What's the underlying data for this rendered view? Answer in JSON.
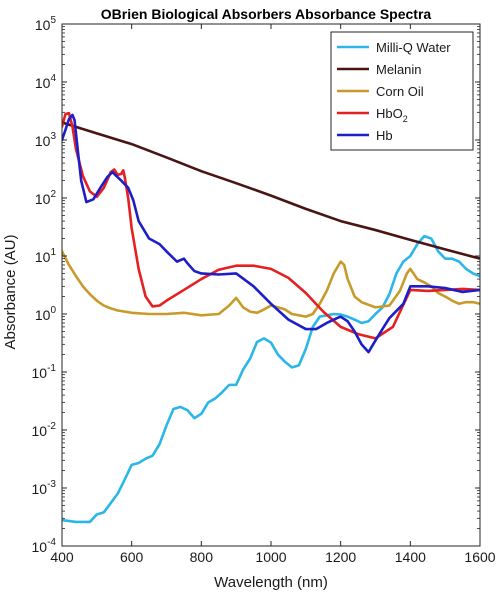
{
  "chart_data": {
    "type": "line",
    "title": "OBrien Biological Absorbers Absorbance Spectra",
    "xlabel": "Wavelength (nm)",
    "ylabel": "Absorbance (AU)",
    "xlim": [
      400,
      1600
    ],
    "ylim_log10": [
      -4,
      5
    ],
    "yscale": "log",
    "grid": false,
    "legend_position": "top-right",
    "x_ticks": [
      "400",
      "600",
      "800",
      "1000",
      "1200",
      "1400",
      "1600"
    ],
    "y_ticks": [
      {
        "base": "10",
        "exp": "-4"
      },
      {
        "base": "10",
        "exp": "-3"
      },
      {
        "base": "10",
        "exp": "-2"
      },
      {
        "base": "10",
        "exp": "-1"
      },
      {
        "base": "10",
        "exp": "0"
      },
      {
        "base": "10",
        "exp": "1"
      },
      {
        "base": "10",
        "exp": "2"
      },
      {
        "base": "10",
        "exp": "3"
      },
      {
        "base": "10",
        "exp": "4"
      },
      {
        "base": "10",
        "exp": "5"
      }
    ],
    "series": [
      {
        "name": "Milli-Q Water",
        "color": "#2ab7e8",
        "x": [
          400,
          440,
          480,
          500,
          520,
          540,
          560,
          580,
          600,
          620,
          640,
          660,
          680,
          700,
          720,
          740,
          760,
          780,
          800,
          820,
          840,
          860,
          880,
          900,
          920,
          940,
          960,
          980,
          1000,
          1020,
          1040,
          1060,
          1080,
          1100,
          1120,
          1140,
          1160,
          1180,
          1200,
          1220,
          1240,
          1260,
          1280,
          1300,
          1320,
          1340,
          1360,
          1380,
          1400,
          1420,
          1440,
          1460,
          1480,
          1500,
          1520,
          1540,
          1560,
          1580,
          1600
        ],
        "y": [
          0.00028,
          0.00026,
          0.00026,
          0.00035,
          0.00038,
          0.00055,
          0.0008,
          0.0014,
          0.0025,
          0.0027,
          0.0032,
          0.0036,
          0.0057,
          0.012,
          0.023,
          0.025,
          0.022,
          0.016,
          0.019,
          0.03,
          0.035,
          0.045,
          0.06,
          0.06,
          0.11,
          0.17,
          0.33,
          0.38,
          0.32,
          0.2,
          0.15,
          0.12,
          0.13,
          0.25,
          0.6,
          0.9,
          0.95,
          1.0,
          0.98,
          0.9,
          0.8,
          0.7,
          0.75,
          1.0,
          1.3,
          2.2,
          5.0,
          8.0,
          10.0,
          16.0,
          22.0,
          20.0,
          12.0,
          9.0,
          9.0,
          8.0,
          6.0,
          5.0,
          4.5
        ]
      },
      {
        "name": "Melanin",
        "color": "#4a1414",
        "x": [
          400,
          500,
          600,
          700,
          800,
          900,
          1000,
          1100,
          1200,
          1300,
          1400,
          1500,
          1600
        ],
        "y": [
          2000,
          1300,
          850,
          500,
          290,
          180,
          110,
          65,
          40,
          28,
          19,
          13,
          9
        ]
      },
      {
        "name": "Corn Oil",
        "color": "#c89a2a",
        "x": [
          400,
          420,
          440,
          460,
          480,
          500,
          520,
          540,
          560,
          580,
          600,
          650,
          700,
          750,
          800,
          850,
          880,
          900,
          920,
          940,
          960,
          980,
          1000,
          1020,
          1040,
          1060,
          1080,
          1100,
          1120,
          1140,
          1160,
          1180,
          1200,
          1210,
          1220,
          1240,
          1260,
          1300,
          1340,
          1370,
          1390,
          1400,
          1420,
          1440,
          1460,
          1480,
          1500,
          1520,
          1540,
          1560,
          1580,
          1600
        ],
        "y": [
          12.0,
          7.0,
          4.5,
          3.0,
          2.2,
          1.7,
          1.4,
          1.25,
          1.15,
          1.1,
          1.05,
          1.0,
          1.0,
          1.05,
          0.95,
          1.0,
          1.4,
          1.9,
          1.3,
          1.1,
          1.05,
          1.2,
          1.4,
          1.3,
          1.2,
          1.0,
          0.95,
          0.9,
          1.0,
          1.5,
          2.5,
          5.0,
          8.0,
          7.0,
          4.0,
          2.0,
          1.6,
          1.3,
          1.4,
          2.5,
          5.0,
          6.0,
          4.0,
          3.5,
          3.0,
          2.3,
          2.0,
          1.7,
          1.5,
          1.6,
          1.6,
          1.5
        ]
      },
      {
        "name": "HbO",
        "name_sub": "2",
        "color": "#e62020",
        "x": [
          400,
          410,
          420,
          430,
          440,
          460,
          480,
          500,
          520,
          540,
          550,
          560,
          570,
          576,
          580,
          590,
          600,
          620,
          640,
          660,
          680,
          700,
          750,
          800,
          850,
          900,
          950,
          1000,
          1050,
          1100,
          1150,
          1200,
          1250,
          1300,
          1350,
          1400,
          1450,
          1500,
          1550,
          1600
        ],
        "y": [
          1700,
          2800,
          2900,
          1700,
          700,
          240,
          130,
          105,
          150,
          280,
          310,
          250,
          260,
          300,
          230,
          100,
          30,
          6.0,
          2.0,
          1.35,
          1.4,
          1.7,
          2.6,
          4.0,
          5.8,
          6.8,
          6.8,
          6.0,
          4.2,
          2.3,
          1.1,
          0.6,
          0.45,
          0.38,
          0.6,
          2.6,
          2.5,
          2.6,
          2.7,
          2.6
        ]
      },
      {
        "name": "Hb",
        "color": "#1e1ec8",
        "x": [
          400,
          410,
          420,
          430,
          436,
          445,
          455,
          470,
          490,
          510,
          530,
          545,
          556,
          570,
          590,
          605,
          620,
          650,
          680,
          700,
          730,
          750,
          760,
          780,
          800,
          850,
          900,
          950,
          1000,
          1050,
          1100,
          1130,
          1160,
          1190,
          1200,
          1220,
          1240,
          1260,
          1280,
          1300,
          1320,
          1340,
          1380,
          1400,
          1450,
          1500,
          1550,
          1600
        ],
        "y": [
          1000,
          1500,
          2300,
          2700,
          2200,
          700,
          200,
          85,
          95,
          150,
          230,
          280,
          240,
          200,
          150,
          90,
          40,
          20,
          16,
          12,
          8.0,
          9.0,
          7.5,
          5.5,
          5.0,
          4.8,
          5.0,
          3.0,
          1.5,
          0.8,
          0.55,
          0.55,
          0.7,
          0.85,
          0.9,
          0.75,
          0.5,
          0.3,
          0.22,
          0.35,
          0.55,
          0.85,
          1.5,
          3.0,
          3.0,
          2.8,
          2.4,
          2.6
        ]
      }
    ]
  }
}
